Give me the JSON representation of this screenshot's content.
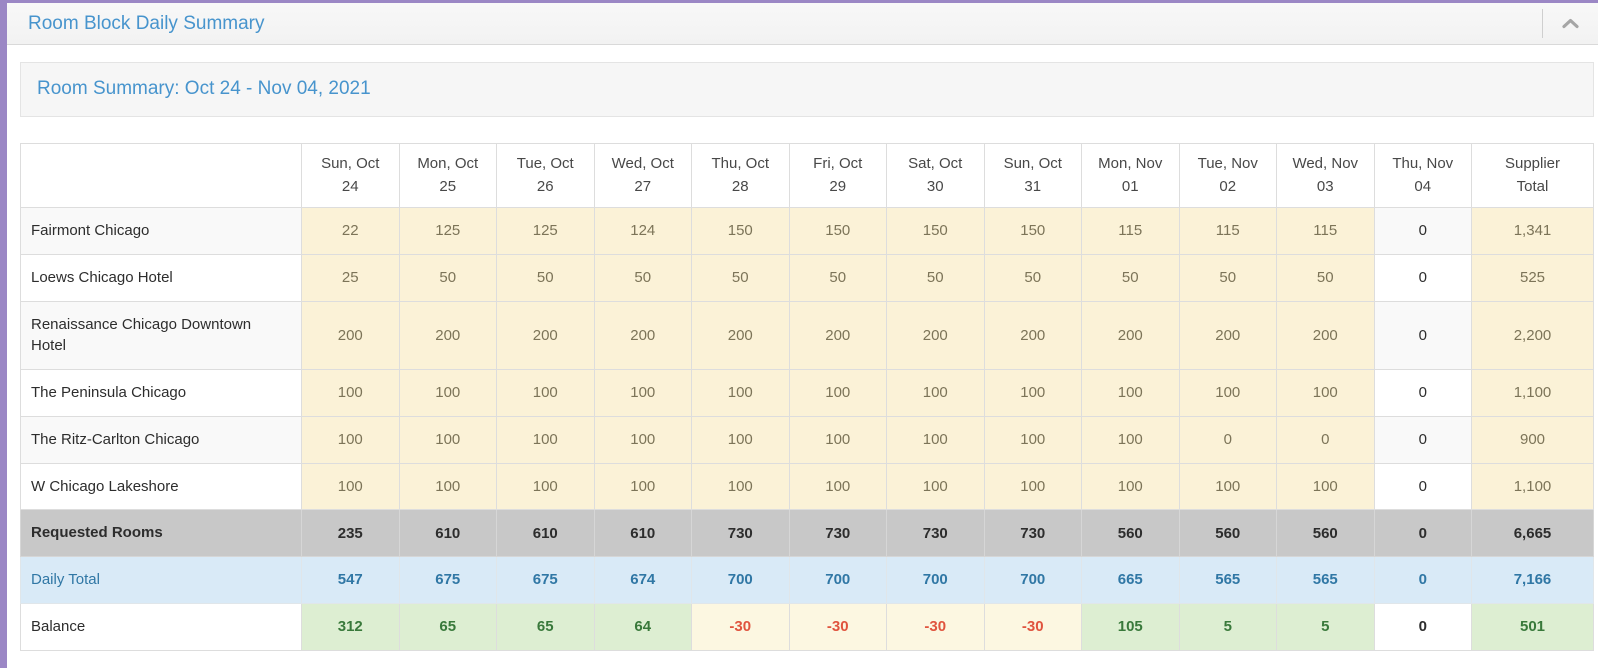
{
  "panel": {
    "title": "Room Block Daily Summary",
    "collapse_icon": "chevron-up",
    "accent_color": "#9b87c5"
  },
  "summary": {
    "title": "Room Summary: Oct 24 - Nov 04, 2021"
  },
  "table": {
    "corner_header": "",
    "columns": [
      {
        "l1": "Sun, Oct",
        "l2": "24"
      },
      {
        "l1": "Mon, Oct",
        "l2": "25"
      },
      {
        "l1": "Tue, Oct",
        "l2": "26"
      },
      {
        "l1": "Wed, Oct",
        "l2": "27"
      },
      {
        "l1": "Thu, Oct",
        "l2": "28"
      },
      {
        "l1": "Fri, Oct",
        "l2": "29"
      },
      {
        "l1": "Sat, Oct",
        "l2": "30"
      },
      {
        "l1": "Sun, Oct",
        "l2": "31"
      },
      {
        "l1": "Mon, Nov",
        "l2": "01"
      },
      {
        "l1": "Tue, Nov",
        "l2": "02"
      },
      {
        "l1": "Wed, Nov",
        "l2": "03"
      },
      {
        "l1": "Thu, Nov",
        "l2": "04"
      },
      {
        "l1": "Supplier",
        "l2": "Total"
      }
    ],
    "hotel_rows": [
      {
        "name": "Fairmont Chicago",
        "values": [
          "22",
          "125",
          "125",
          "124",
          "150",
          "150",
          "150",
          "150",
          "115",
          "115",
          "115",
          "0"
        ],
        "total": "1,341"
      },
      {
        "name": "Loews Chicago Hotel",
        "values": [
          "25",
          "50",
          "50",
          "50",
          "50",
          "50",
          "50",
          "50",
          "50",
          "50",
          "50",
          "0"
        ],
        "total": "525"
      },
      {
        "name": "Renaissance Chicago Downtown Hotel",
        "values": [
          "200",
          "200",
          "200",
          "200",
          "200",
          "200",
          "200",
          "200",
          "200",
          "200",
          "200",
          "0"
        ],
        "total": "2,200"
      },
      {
        "name": "The Peninsula Chicago",
        "values": [
          "100",
          "100",
          "100",
          "100",
          "100",
          "100",
          "100",
          "100",
          "100",
          "100",
          "100",
          "0"
        ],
        "total": "1,100"
      },
      {
        "name": "The Ritz-Carlton Chicago",
        "values": [
          "100",
          "100",
          "100",
          "100",
          "100",
          "100",
          "100",
          "100",
          "100",
          "0",
          "0",
          "0"
        ],
        "total": "900"
      },
      {
        "name": "W Chicago Lakeshore",
        "values": [
          "100",
          "100",
          "100",
          "100",
          "100",
          "100",
          "100",
          "100",
          "100",
          "100",
          "100",
          "0"
        ],
        "total": "1,100"
      }
    ],
    "summary_rows": [
      {
        "key": "requested",
        "label": "Requested Rooms",
        "values": [
          "235",
          "610",
          "610",
          "610",
          "730",
          "730",
          "730",
          "730",
          "560",
          "560",
          "560",
          "0"
        ],
        "total": "6,665"
      },
      {
        "key": "daily",
        "label": "Daily Total",
        "values": [
          "547",
          "675",
          "675",
          "674",
          "700",
          "700",
          "700",
          "700",
          "665",
          "565",
          "565",
          "0"
        ],
        "total": "7,166"
      },
      {
        "key": "balance",
        "label": "Balance",
        "values": [
          "312",
          "65",
          "65",
          "64",
          "-30",
          "-30",
          "-30",
          "-30",
          "105",
          "5",
          "5",
          "0"
        ],
        "total": "501"
      }
    ]
  },
  "colors": {
    "title_blue": "#4794cd",
    "cream_bg": "#fbf2d7",
    "cream_text": "#7c7458",
    "requested_bg": "#c8c8c8",
    "daily_bg": "#d9eaf7",
    "daily_text": "#3077a5",
    "balance_pos_bg": "#ddeed2",
    "balance_pos_text": "#39793b",
    "balance_neg_bg": "#fcf7e1",
    "balance_neg_text": "#e0543e"
  }
}
